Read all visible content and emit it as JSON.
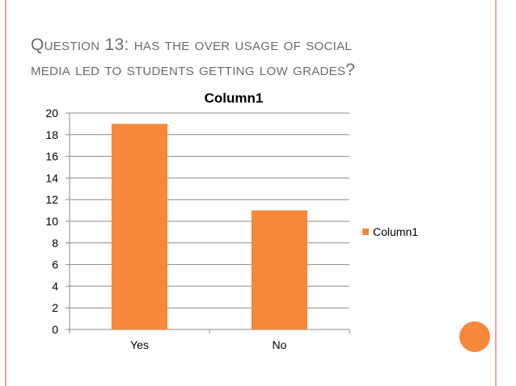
{
  "slide": {
    "title_line1": "Question 13: has the over usage of social",
    "title_line2": "media led to students getting low grades?"
  },
  "colors": {
    "bar": "#f5883a",
    "title": "#6b6b6b",
    "frame": "#f0a898",
    "accent_circle": "#f5883a"
  },
  "chart_data": {
    "type": "bar",
    "title": "Column1",
    "categories": [
      "Yes",
      "No"
    ],
    "series": [
      {
        "name": "Column1",
        "values": [
          19,
          11
        ]
      }
    ],
    "xlabel": "",
    "ylabel": "",
    "ylim": [
      0,
      20
    ],
    "yticks": [
      0,
      2,
      4,
      6,
      8,
      10,
      12,
      14,
      16,
      18,
      20
    ],
    "grid": true,
    "legend": "right"
  }
}
